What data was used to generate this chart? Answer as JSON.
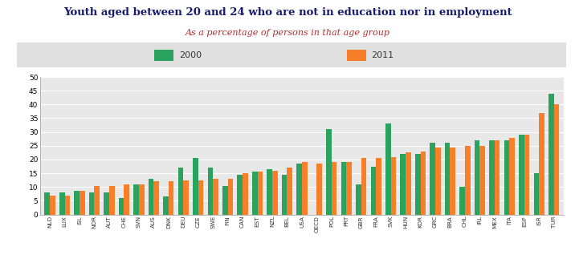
{
  "title": "Youth aged between 20 and 24 who are not in education nor in employment",
  "subtitle": "As a percentage of persons in that age group",
  "categories": [
    "NLD",
    "LUX",
    "ISL",
    "NOR",
    "AUT",
    "CHE",
    "SVN",
    "AUS",
    "DNK",
    "DEU",
    "CZE",
    "SWE",
    "FIN",
    "CAN",
    "EST",
    "NZL",
    "BEL",
    "USA",
    "OECD",
    "POL",
    "PRT",
    "GBR",
    "FRA",
    "SVK",
    "HUN",
    "KOR",
    "GRC",
    "BRA",
    "CHL",
    "IRL",
    "MEX",
    "ITA",
    "ESP",
    "ISR",
    "TUR"
  ],
  "values_2000": [
    8,
    8,
    8.5,
    8,
    8,
    6,
    11,
    13,
    6.5,
    17,
    20.5,
    17,
    10.5,
    14.5,
    15.5,
    16.5,
    14.5,
    18.5,
    null,
    31,
    19,
    11,
    17.5,
    33,
    22,
    22,
    26,
    26,
    10,
    27,
    27,
    27,
    29,
    15,
    44
  ],
  "values_2011": [
    7,
    7,
    8.5,
    10.5,
    10.5,
    11,
    11,
    12,
    12,
    12.5,
    12.5,
    13,
    13,
    15,
    15.5,
    16,
    17,
    19,
    18.5,
    19,
    19,
    20.5,
    20.5,
    21,
    22.5,
    23,
    24.5,
    24.5,
    25,
    25,
    27,
    28,
    29,
    37,
    40
  ],
  "color_2000": "#2ca25f",
  "color_2011": "#f77f2a",
  "color_oecd_2000": "#4472c4",
  "ylim": [
    0,
    50
  ],
  "yticks": [
    0,
    5,
    10,
    15,
    20,
    25,
    30,
    35,
    40,
    45,
    50
  ],
  "fig_bg": "#ffffff",
  "plot_bg": "#e8e8e8",
  "legend_bg": "#e0e0e0",
  "title_color": "#1a1a6e",
  "subtitle_color": "#b03030"
}
